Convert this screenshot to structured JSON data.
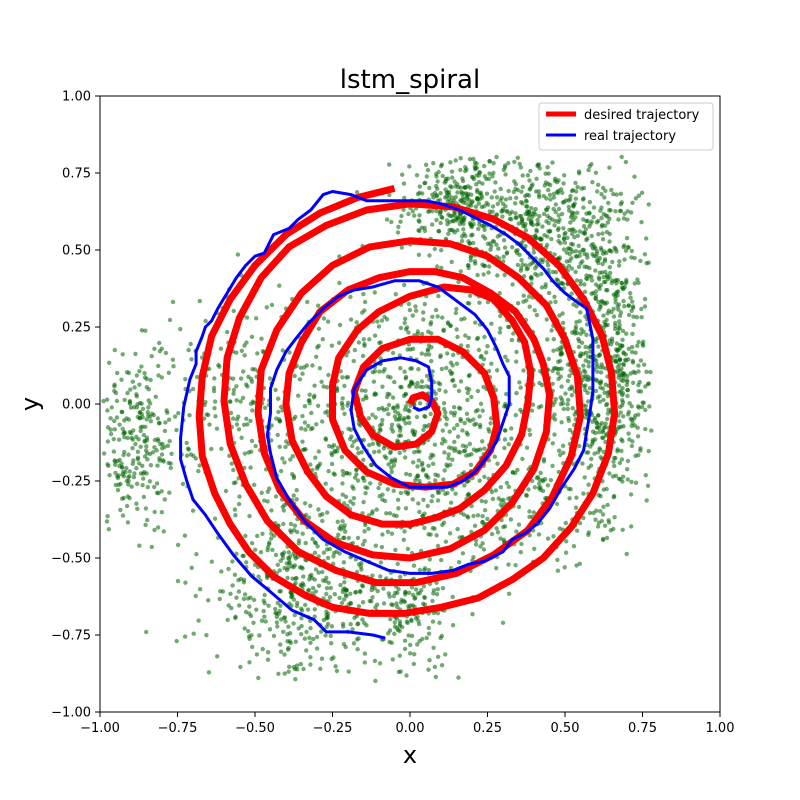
{
  "chart_data": {
    "type": "line",
    "title": "lstm_spiral",
    "xlabel": "x",
    "ylabel": "y",
    "xlim": [
      -1.0,
      1.0
    ],
    "ylim": [
      -1.0,
      1.0
    ],
    "xticks": [
      "−1.00",
      "−0.75",
      "−0.50",
      "−0.25",
      "0.00",
      "0.25",
      "0.50",
      "0.75",
      "1.00"
    ],
    "yticks": [
      "−1.00",
      "−0.75",
      "−0.50",
      "−0.25",
      "0.00",
      "0.25",
      "0.50",
      "0.75",
      "1.00"
    ],
    "xtick_values": [
      -1.0,
      -0.75,
      -0.5,
      -0.25,
      0.0,
      0.25,
      0.5,
      0.75,
      1.0
    ],
    "ytick_values": [
      -1.0,
      -0.75,
      -0.5,
      -0.25,
      0.0,
      0.25,
      0.5,
      0.75,
      1.0
    ],
    "grid": false,
    "legend_position": "top-right",
    "series": [
      {
        "name": "desired trajectory",
        "color": "#ff0000",
        "points": [
          [
            0.0,
            0.0
          ],
          [
            0.01,
            0.02
          ],
          [
            0.04,
            0.03
          ],
          [
            0.07,
            0.01
          ],
          [
            0.09,
            -0.03
          ],
          [
            0.07,
            -0.09
          ],
          [
            0.02,
            -0.13
          ],
          [
            -0.05,
            -0.14
          ],
          [
            -0.12,
            -0.1
          ],
          [
            -0.16,
            -0.04
          ],
          [
            -0.18,
            0.04
          ],
          [
            -0.15,
            0.12
          ],
          [
            -0.09,
            0.18
          ],
          [
            0.0,
            0.21
          ],
          [
            0.09,
            0.21
          ],
          [
            0.17,
            0.17
          ],
          [
            0.24,
            0.1
          ],
          [
            0.27,
            0.02
          ],
          [
            0.28,
            -0.07
          ],
          [
            0.26,
            -0.15
          ],
          [
            0.21,
            -0.22
          ],
          [
            0.14,
            -0.26
          ],
          [
            0.05,
            -0.27
          ],
          [
            -0.05,
            -0.26
          ],
          [
            -0.14,
            -0.22
          ],
          [
            -0.21,
            -0.15
          ],
          [
            -0.25,
            -0.05
          ],
          [
            -0.25,
            0.06
          ],
          [
            -0.23,
            0.15
          ],
          [
            -0.17,
            0.24
          ],
          [
            -0.1,
            0.3
          ],
          [
            0.0,
            0.35
          ],
          [
            0.11,
            0.38
          ],
          [
            0.2,
            0.37
          ],
          [
            0.27,
            0.34
          ],
          [
            0.33,
            0.27
          ],
          [
            0.37,
            0.2
          ],
          [
            0.39,
            0.1
          ],
          [
            0.38,
            0.0
          ],
          [
            0.36,
            -0.1
          ],
          [
            0.31,
            -0.2
          ],
          [
            0.24,
            -0.28
          ],
          [
            0.16,
            -0.34
          ],
          [
            0.08,
            -0.37
          ],
          [
            0.0,
            -0.39
          ],
          [
            -0.09,
            -0.39
          ],
          [
            -0.19,
            -0.36
          ],
          [
            -0.27,
            -0.3
          ],
          [
            -0.33,
            -0.22
          ],
          [
            -0.38,
            -0.12
          ],
          [
            -0.4,
            0.0
          ],
          [
            -0.39,
            0.1
          ],
          [
            -0.35,
            0.2
          ],
          [
            -0.29,
            0.3
          ],
          [
            -0.2,
            0.37
          ],
          [
            -0.1,
            0.41
          ],
          [
            0.0,
            0.43
          ],
          [
            0.08,
            0.43
          ],
          [
            0.17,
            0.41
          ],
          [
            0.26,
            0.36
          ],
          [
            0.34,
            0.3
          ],
          [
            0.4,
            0.21
          ],
          [
            0.43,
            0.13
          ],
          [
            0.45,
            0.03
          ],
          [
            0.44,
            -0.09
          ],
          [
            0.4,
            -0.21
          ],
          [
            0.33,
            -0.32
          ],
          [
            0.24,
            -0.41
          ],
          [
            0.13,
            -0.47
          ],
          [
            0.0,
            -0.5
          ],
          [
            -0.12,
            -0.49
          ],
          [
            -0.24,
            -0.45
          ],
          [
            -0.34,
            -0.38
          ],
          [
            -0.42,
            -0.28
          ],
          [
            -0.47,
            -0.16
          ],
          [
            -0.49,
            -0.03
          ],
          [
            -0.48,
            0.11
          ],
          [
            -0.43,
            0.24
          ],
          [
            -0.35,
            0.36
          ],
          [
            -0.25,
            0.45
          ],
          [
            -0.13,
            0.51
          ],
          [
            0.0,
            0.53
          ],
          [
            0.13,
            0.52
          ],
          [
            0.25,
            0.48
          ],
          [
            0.35,
            0.41
          ],
          [
            0.44,
            0.32
          ],
          [
            0.5,
            0.21
          ],
          [
            0.54,
            0.09
          ],
          [
            0.55,
            -0.04
          ],
          [
            0.52,
            -0.17
          ],
          [
            0.46,
            -0.3
          ],
          [
            0.38,
            -0.41
          ],
          [
            0.27,
            -0.49
          ],
          [
            0.15,
            -0.55
          ],
          [
            0.02,
            -0.58
          ],
          [
            -0.11,
            -0.58
          ],
          [
            -0.24,
            -0.54
          ],
          [
            -0.36,
            -0.48
          ],
          [
            -0.46,
            -0.38
          ],
          [
            -0.53,
            -0.26
          ],
          [
            -0.58,
            -0.13
          ],
          [
            -0.6,
            0.01
          ],
          [
            -0.59,
            0.15
          ],
          [
            -0.55,
            0.28
          ],
          [
            -0.48,
            0.41
          ],
          [
            -0.39,
            0.51
          ],
          [
            -0.27,
            0.58
          ],
          [
            -0.14,
            0.63
          ],
          [
            0.0,
            0.65
          ],
          [
            0.14,
            0.64
          ],
          [
            0.27,
            0.6
          ],
          [
            0.38,
            0.54
          ],
          [
            0.48,
            0.45
          ],
          [
            0.56,
            0.34
          ],
          [
            0.62,
            0.22
          ],
          [
            0.65,
            0.1
          ],
          [
            0.66,
            -0.03
          ],
          [
            0.64,
            -0.16
          ],
          [
            0.59,
            -0.29
          ],
          [
            0.52,
            -0.4
          ],
          [
            0.43,
            -0.5
          ],
          [
            0.33,
            -0.57
          ],
          [
            0.22,
            -0.63
          ],
          [
            0.1,
            -0.66
          ],
          [
            -0.02,
            -0.68
          ],
          [
            -0.13,
            -0.68
          ],
          [
            -0.25,
            -0.66
          ],
          [
            -0.34,
            -0.62
          ],
          [
            -0.44,
            -0.56
          ],
          [
            -0.52,
            -0.48
          ],
          [
            -0.58,
            -0.39
          ],
          [
            -0.63,
            -0.29
          ],
          [
            -0.67,
            -0.17
          ],
          [
            -0.68,
            -0.04
          ],
          [
            -0.67,
            0.09
          ],
          [
            -0.64,
            0.22
          ],
          [
            -0.58,
            0.34
          ],
          [
            -0.5,
            0.45
          ],
          [
            -0.4,
            0.55
          ],
          [
            -0.29,
            0.62
          ],
          [
            -0.17,
            0.67
          ],
          [
            -0.05,
            0.7
          ]
        ]
      },
      {
        "name": "real trajectory",
        "color": "#0000ff",
        "points": [
          [
            -0.08,
            -0.76
          ],
          [
            -0.12,
            -0.75
          ],
          [
            -0.2,
            -0.74
          ],
          [
            -0.27,
            -0.74
          ],
          [
            -0.31,
            -0.7
          ],
          [
            -0.38,
            -0.67
          ],
          [
            -0.45,
            -0.61
          ],
          [
            -0.51,
            -0.56
          ],
          [
            -0.57,
            -0.49
          ],
          [
            -0.62,
            -0.42
          ],
          [
            -0.66,
            -0.36
          ],
          [
            -0.7,
            -0.31
          ],
          [
            -0.72,
            -0.25
          ],
          [
            -0.74,
            -0.18
          ],
          [
            -0.74,
            -0.11
          ],
          [
            -0.73,
            -0.01
          ],
          [
            -0.71,
            0.08
          ],
          [
            -0.69,
            0.13
          ],
          [
            -0.69,
            0.17
          ],
          [
            -0.67,
            0.22
          ],
          [
            -0.66,
            0.25
          ],
          [
            -0.64,
            0.27
          ],
          [
            -0.62,
            0.31
          ],
          [
            -0.59,
            0.36
          ],
          [
            -0.56,
            0.41
          ],
          [
            -0.53,
            0.45
          ],
          [
            -0.5,
            0.48
          ],
          [
            -0.47,
            0.49
          ],
          [
            -0.44,
            0.55
          ],
          [
            -0.39,
            0.57
          ],
          [
            -0.36,
            0.6
          ],
          [
            -0.32,
            0.63
          ],
          [
            -0.28,
            0.68
          ],
          [
            -0.25,
            0.69
          ],
          [
            -0.19,
            0.68
          ],
          [
            -0.14,
            0.66
          ],
          [
            -0.08,
            0.66
          ],
          [
            -0.02,
            0.66
          ],
          [
            0.05,
            0.66
          ],
          [
            0.1,
            0.65
          ],
          [
            0.16,
            0.63
          ],
          [
            0.22,
            0.6
          ],
          [
            0.26,
            0.58
          ],
          [
            0.31,
            0.55
          ],
          [
            0.35,
            0.52
          ],
          [
            0.39,
            0.48
          ],
          [
            0.43,
            0.44
          ],
          [
            0.46,
            0.4
          ],
          [
            0.5,
            0.36
          ],
          [
            0.54,
            0.33
          ],
          [
            0.57,
            0.31
          ],
          [
            0.58,
            0.26
          ],
          [
            0.59,
            0.21
          ],
          [
            0.59,
            0.16
          ],
          [
            0.59,
            0.1
          ],
          [
            0.59,
            0.04
          ],
          [
            0.58,
            -0.03
          ],
          [
            0.57,
            -0.09
          ],
          [
            0.56,
            -0.15
          ],
          [
            0.53,
            -0.21
          ],
          [
            0.49,
            -0.27
          ],
          [
            0.45,
            -0.34
          ],
          [
            0.41,
            -0.39
          ],
          [
            0.37,
            -0.42
          ],
          [
            0.33,
            -0.44
          ],
          [
            0.3,
            -0.48
          ],
          [
            0.24,
            -0.51
          ],
          [
            0.19,
            -0.52
          ],
          [
            0.14,
            -0.54
          ],
          [
            0.07,
            -0.55
          ],
          [
            0.0,
            -0.55
          ],
          [
            -0.07,
            -0.54
          ],
          [
            -0.14,
            -0.51
          ],
          [
            -0.21,
            -0.48
          ],
          [
            -0.28,
            -0.44
          ],
          [
            -0.34,
            -0.38
          ],
          [
            -0.39,
            -0.31
          ],
          [
            -0.43,
            -0.24
          ],
          [
            -0.45,
            -0.16
          ],
          [
            -0.46,
            -0.1
          ],
          [
            -0.45,
            -0.03
          ],
          [
            -0.45,
            0.05
          ],
          [
            -0.43,
            0.11
          ],
          [
            -0.4,
            0.17
          ],
          [
            -0.37,
            0.21
          ],
          [
            -0.33,
            0.26
          ],
          [
            -0.28,
            0.31
          ],
          [
            -0.23,
            0.35
          ],
          [
            -0.18,
            0.37
          ],
          [
            -0.12,
            0.38
          ],
          [
            -0.05,
            0.4
          ],
          [
            0.03,
            0.4
          ],
          [
            0.09,
            0.38
          ],
          [
            0.13,
            0.35
          ],
          [
            0.17,
            0.32
          ],
          [
            0.21,
            0.29
          ],
          [
            0.25,
            0.24
          ],
          [
            0.28,
            0.18
          ],
          [
            0.3,
            0.13
          ],
          [
            0.32,
            0.09
          ],
          [
            0.32,
            0.0
          ],
          [
            0.3,
            -0.06
          ],
          [
            0.28,
            -0.12
          ],
          [
            0.25,
            -0.17
          ],
          [
            0.21,
            -0.22
          ],
          [
            0.17,
            -0.25
          ],
          [
            0.12,
            -0.27
          ],
          [
            0.06,
            -0.27
          ],
          [
            0.0,
            -0.27
          ],
          [
            -0.06,
            -0.24
          ],
          [
            -0.11,
            -0.2
          ],
          [
            -0.15,
            -0.14
          ],
          [
            -0.18,
            -0.08
          ],
          [
            -0.19,
            -0.02
          ],
          [
            -0.18,
            0.05
          ],
          [
            -0.14,
            0.11
          ],
          [
            -0.09,
            0.14
          ],
          [
            -0.03,
            0.15
          ],
          [
            0.02,
            0.14
          ],
          [
            0.06,
            0.12
          ],
          [
            0.07,
            0.07
          ],
          [
            0.07,
            0.02
          ],
          [
            0.06,
            -0.01
          ],
          [
            0.03,
            -0.02
          ],
          [
            0.01,
            -0.01
          ]
        ]
      }
    ],
    "scatter": {
      "color": "#006400",
      "seed": 12345,
      "clusters": [
        {
          "cx": 0.0,
          "cy": -0.05,
          "sx": 0.22,
          "sy": 0.22,
          "n": 900
        },
        {
          "cx": 0.62,
          "cy": 0.1,
          "sx": 0.1,
          "sy": 0.22,
          "n": 700
        },
        {
          "cx": 0.45,
          "cy": 0.55,
          "sx": 0.15,
          "sy": 0.13,
          "n": 600
        },
        {
          "cx": 0.15,
          "cy": 0.65,
          "sx": 0.1,
          "sy": 0.08,
          "n": 300
        },
        {
          "cx": -0.88,
          "cy": -0.12,
          "sx": 0.09,
          "sy": 0.14,
          "n": 260
        },
        {
          "cx": -0.35,
          "cy": -0.6,
          "sx": 0.15,
          "sy": 0.15,
          "n": 500
        },
        {
          "cx": 0.0,
          "cy": -0.68,
          "sx": 0.06,
          "sy": 0.1,
          "n": 160
        },
        {
          "cx": -0.55,
          "cy": 0.0,
          "sx": 0.12,
          "sy": 0.2,
          "n": 200
        },
        {
          "cx": 0.35,
          "cy": -0.35,
          "sx": 0.15,
          "sy": 0.1,
          "n": 180
        }
      ]
    }
  }
}
